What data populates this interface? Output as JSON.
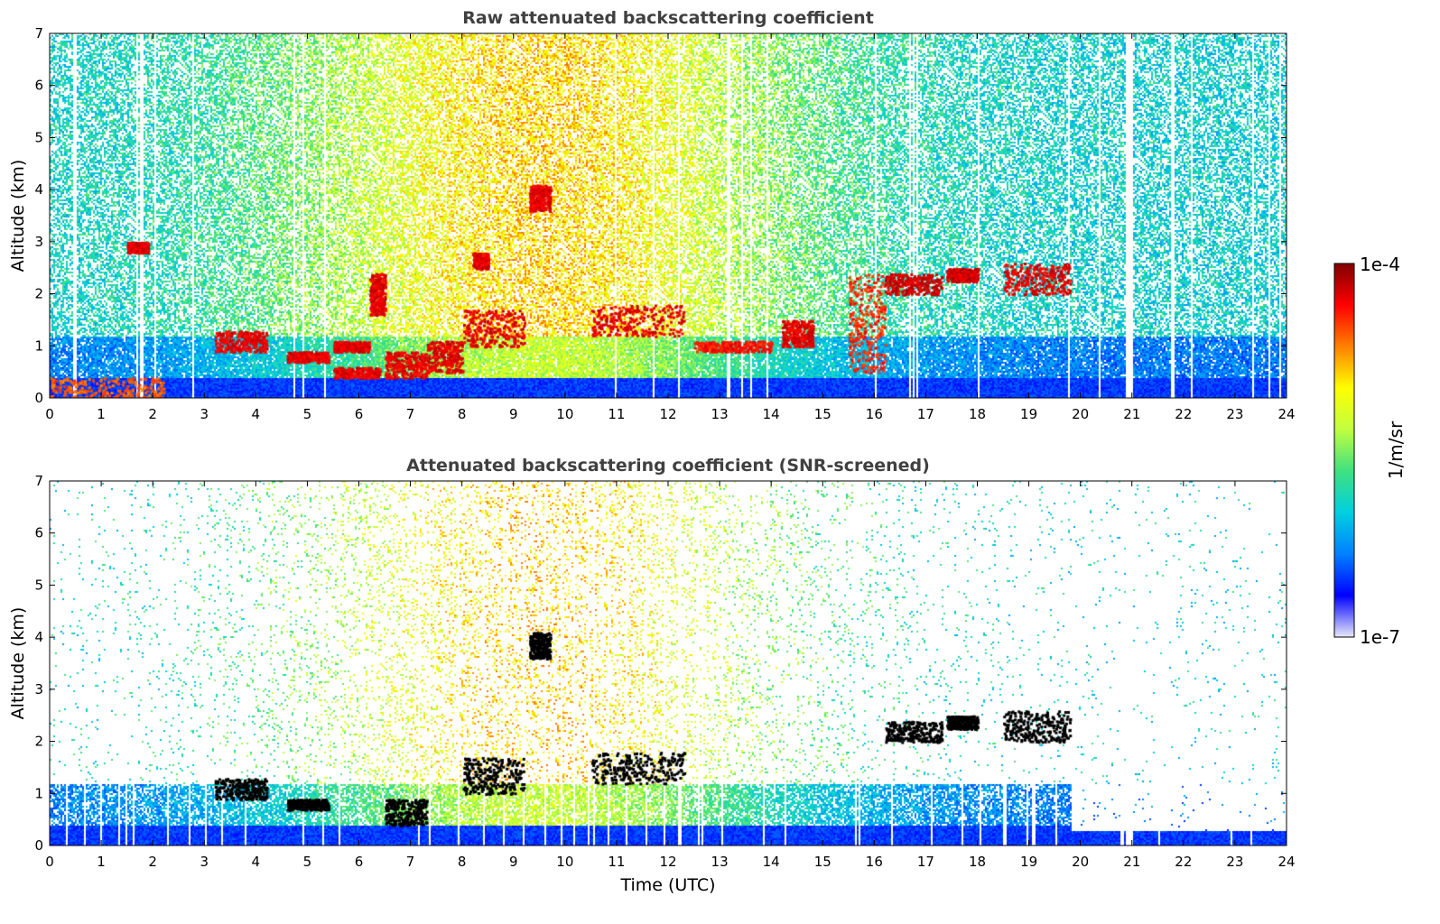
{
  "chart_data": [
    {
      "type": "heatmap",
      "title": "Raw attenuated backscattering coefficient",
      "xlabel": "",
      "ylabel": "Altitude (km)",
      "xlim": [
        0,
        24
      ],
      "ylim": [
        0,
        7
      ],
      "xticks": [
        "0",
        "1",
        "2",
        "3",
        "4",
        "5",
        "6",
        "7",
        "8",
        "9",
        "10",
        "11",
        "12",
        "13",
        "14",
        "15",
        "16",
        "17",
        "18",
        "19",
        "20",
        "21",
        "22",
        "23",
        "24"
      ],
      "yticks": [
        "0",
        "1",
        "2",
        "3",
        "4",
        "5",
        "6",
        "7"
      ],
      "screened": false,
      "features": [
        {
          "t0": 0.0,
          "t1": 2.2,
          "z0": 0.0,
          "z1": 0.4,
          "value": 0.85
        },
        {
          "t0": 3.2,
          "t1": 4.2,
          "z0": 0.9,
          "z1": 1.3,
          "value": 0.95
        },
        {
          "t0": 4.6,
          "t1": 5.4,
          "z0": 0.7,
          "z1": 0.9,
          "value": 0.95
        },
        {
          "t0": 5.5,
          "t1": 6.2,
          "z0": 0.9,
          "z1": 1.1,
          "value": 0.95
        },
        {
          "t0": 5.5,
          "t1": 6.4,
          "z0": 0.4,
          "z1": 0.6,
          "value": 0.95
        },
        {
          "t0": 6.5,
          "t1": 7.3,
          "z0": 0.4,
          "z1": 0.9,
          "value": 0.95
        },
        {
          "t0": 7.3,
          "t1": 8.0,
          "z0": 0.5,
          "z1": 1.1,
          "value": 0.95
        },
        {
          "t0": 8.0,
          "t1": 9.2,
          "z0": 1.0,
          "z1": 1.7,
          "value": 0.95
        },
        {
          "t0": 9.3,
          "t1": 9.7,
          "z0": 3.6,
          "z1": 4.1,
          "value": 0.95
        },
        {
          "t0": 6.2,
          "t1": 6.5,
          "z0": 1.6,
          "z1": 2.4,
          "value": 0.95
        },
        {
          "t0": 8.2,
          "t1": 8.5,
          "z0": 2.5,
          "z1": 2.8,
          "value": 0.95
        },
        {
          "t0": 10.5,
          "t1": 12.3,
          "z0": 1.2,
          "z1": 1.8,
          "value": 0.95
        },
        {
          "t0": 12.5,
          "t1": 14.0,
          "z0": 0.9,
          "z1": 1.1,
          "value": 0.92
        },
        {
          "t0": 14.2,
          "t1": 14.8,
          "z0": 1.0,
          "z1": 1.5,
          "value": 0.95
        },
        {
          "t0": 15.5,
          "t1": 16.2,
          "z0": 0.5,
          "z1": 2.4,
          "value": 0.9
        },
        {
          "t0": 16.2,
          "t1": 17.3,
          "z0": 2.0,
          "z1": 2.4,
          "value": 0.97
        },
        {
          "t0": 17.4,
          "t1": 18.0,
          "z0": 2.25,
          "z1": 2.5,
          "value": 0.97
        },
        {
          "t0": 18.5,
          "t1": 19.8,
          "z0": 2.0,
          "z1": 2.6,
          "value": 0.95
        },
        {
          "t0": 1.5,
          "t1": 1.9,
          "z0": 2.8,
          "z1": 3.0,
          "value": 0.95
        }
      ]
    },
    {
      "type": "heatmap",
      "title": "Attenuated backscattering coefficient (SNR-screened)",
      "xlabel": "Time (UTC)",
      "ylabel": "Altitude (km)",
      "xlim": [
        0,
        24
      ],
      "ylim": [
        0,
        7
      ],
      "xticks": [
        "0",
        "1",
        "2",
        "3",
        "4",
        "5",
        "6",
        "7",
        "8",
        "9",
        "10",
        "11",
        "12",
        "13",
        "14",
        "15",
        "16",
        "17",
        "18",
        "19",
        "20",
        "21",
        "22",
        "23",
        "24"
      ],
      "yticks": [
        "0",
        "1",
        "2",
        "3",
        "4",
        "5",
        "6",
        "7"
      ],
      "screened": true,
      "features": [
        {
          "t0": 3.2,
          "t1": 4.2,
          "z0": 0.9,
          "z1": 1.3,
          "value": 1.0
        },
        {
          "t0": 4.6,
          "t1": 5.4,
          "z0": 0.7,
          "z1": 0.9,
          "value": 1.0
        },
        {
          "t0": 6.5,
          "t1": 7.3,
          "z0": 0.4,
          "z1": 0.9,
          "value": 1.0
        },
        {
          "t0": 8.0,
          "t1": 9.2,
          "z0": 1.0,
          "z1": 1.7,
          "value": 1.0
        },
        {
          "t0": 9.3,
          "t1": 9.7,
          "z0": 3.6,
          "z1": 4.1,
          "value": 1.0
        },
        {
          "t0": 10.5,
          "t1": 12.3,
          "z0": 1.2,
          "z1": 1.8,
          "value": 1.0
        },
        {
          "t0": 16.2,
          "t1": 17.3,
          "z0": 2.0,
          "z1": 2.4,
          "value": 1.0
        },
        {
          "t0": 17.4,
          "t1": 18.0,
          "z0": 2.25,
          "z1": 2.5,
          "value": 1.0
        },
        {
          "t0": 18.5,
          "t1": 19.8,
          "z0": 2.0,
          "z1": 2.6,
          "value": 1.0
        }
      ]
    }
  ],
  "colorbar": {
    "label": "1/m/sr",
    "max_label": "1e-4",
    "min_label": "1e-7",
    "colormap": [
      "#e8e8f8",
      "#0000ff",
      "#0080ff",
      "#00d0e0",
      "#40e080",
      "#c0ff40",
      "#ffff00",
      "#ff8000",
      "#ff0000",
      "#800000"
    ]
  },
  "colors": {
    "screened_saturation": "#000000",
    "background": "#ffffff"
  }
}
